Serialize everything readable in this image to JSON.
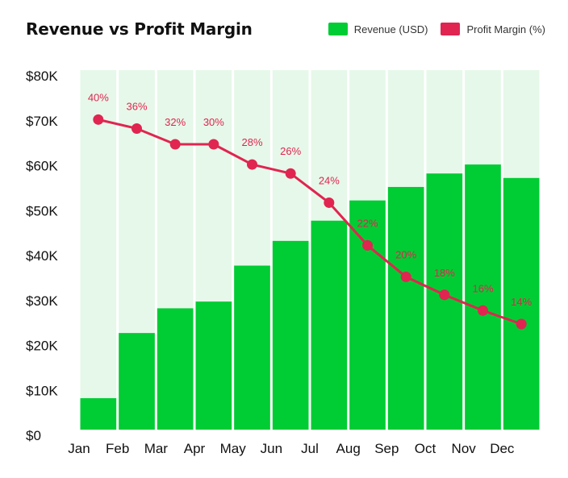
{
  "chart_data": {
    "type": "bar",
    "title": "Revenue vs Profit Margin",
    "categories": [
      "Jan",
      "Feb",
      "Mar",
      "Apr",
      "May",
      "Jun",
      "Jul",
      "Aug",
      "Sep",
      "Oct",
      "Nov",
      "Dec"
    ],
    "ylim": [
      0,
      80000
    ],
    "yticks": [
      "$0",
      "$10K",
      "$20K",
      "$30K",
      "$40K",
      "$50K",
      "$60K",
      "$70K",
      "$80K"
    ],
    "legend_position": "top-right",
    "series": [
      {
        "name": "Revenue (USD)",
        "type": "bar",
        "color": "#00cc33",
        "values": [
          7000,
          21500,
          27000,
          28500,
          36500,
          42000,
          46500,
          51000,
          54000,
          57000,
          59000,
          56000
        ]
      },
      {
        "name": "Profit Margin (%)",
        "type": "line",
        "color": "#e02550",
        "values": [
          40,
          36,
          32,
          30,
          28,
          26,
          24,
          22,
          20,
          18,
          16,
          14
        ],
        "labels": [
          "40%",
          "36%",
          "32%",
          "30%",
          "28%",
          "26%",
          "24%",
          "22%",
          "20%",
          "18%",
          "16%",
          "14%"
        ],
        "plotted_at_revenue_scale": [
          69000,
          67000,
          63500,
          63500,
          59000,
          57000,
          50500,
          41000,
          34000,
          30000,
          26500,
          23500
        ]
      }
    ],
    "colors": {
      "band": "#e6f8e9",
      "gap": "#ffffff"
    }
  }
}
